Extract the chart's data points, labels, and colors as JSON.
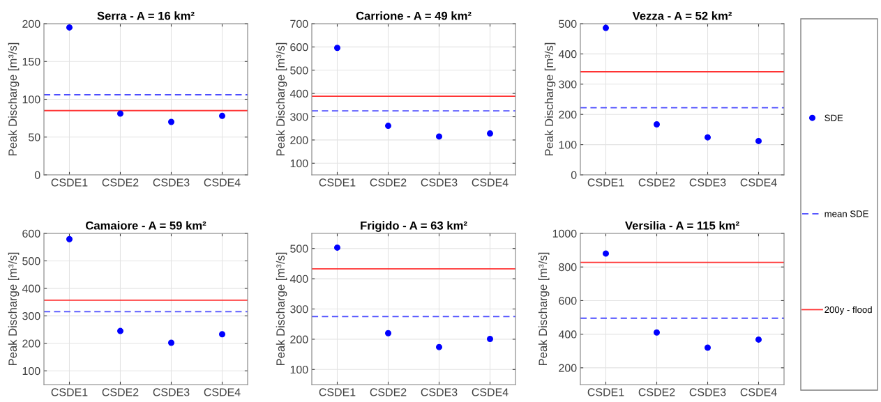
{
  "chart_data": [
    {
      "type": "scatter",
      "title": "Serra - A = 16 km²",
      "ylabel": "Peak Discharge [m³/s]",
      "categories": [
        "CSDE1",
        "CSDE2",
        "CSDE3",
        "CSDE4"
      ],
      "series": [
        {
          "name": "SDE",
          "color": "#0000ff",
          "values": [
            195,
            81,
            70,
            78
          ]
        }
      ],
      "ref_lines": [
        {
          "axis": "y",
          "value": 106,
          "label": "mean SDE",
          "color": "#4d4dff",
          "line_style": "dashed"
        },
        {
          "axis": "y",
          "value": 85,
          "label": "200y - flood",
          "color": "#ff3333",
          "line_style": "solid"
        }
      ],
      "ylim": [
        0,
        200
      ],
      "yticks": [
        0,
        50,
        100,
        150,
        200
      ],
      "grid": true,
      "marker": "circle",
      "legend": "right"
    },
    {
      "type": "scatter",
      "title": "Carrione - A = 49 km²",
      "ylabel": "Peak Discharge [m³/s]",
      "categories": [
        "CSDE1",
        "CSDE2",
        "CSDE3",
        "CSDE4"
      ],
      "series": [
        {
          "name": "SDE",
          "color": "#0000ff",
          "values": [
            596,
            261,
            215,
            228
          ]
        }
      ],
      "ref_lines": [
        {
          "axis": "y",
          "value": 325,
          "color": "#4d4dff",
          "line_style": "dashed"
        },
        {
          "axis": "y",
          "value": 388,
          "color": "#ff3333",
          "line_style": "solid"
        }
      ],
      "ylim": [
        50,
        700
      ],
      "yticks": [
        100,
        200,
        300,
        400,
        500,
        600,
        700
      ],
      "grid": true,
      "marker": "circle",
      "legend": "right"
    },
    {
      "type": "scatter",
      "title": "Vezza - A = 52 km²",
      "ylabel": "Peak Discharge [m³/s]",
      "categories": [
        "CSDE1",
        "CSDE2",
        "CSDE3",
        "CSDE4"
      ],
      "series": [
        {
          "name": "SDE",
          "color": "#0000ff",
          "values": [
            486,
            167,
            124,
            112
          ]
        }
      ],
      "ref_lines": [
        {
          "axis": "y",
          "value": 222,
          "color": "#4d4dff",
          "line_style": "dashed"
        },
        {
          "axis": "y",
          "value": 341,
          "color": "#ff3333",
          "line_style": "solid"
        }
      ],
      "ylim": [
        0,
        500
      ],
      "yticks": [
        0,
        100,
        200,
        300,
        400,
        500
      ],
      "grid": true,
      "marker": "circle",
      "legend": "right"
    },
    {
      "type": "scatter",
      "title": "Camaiore - A = 59 km²",
      "ylabel": "Peak Discharge [m³/s]",
      "categories": [
        "CSDE1",
        "CSDE2",
        "CSDE3",
        "CSDE4"
      ],
      "series": [
        {
          "name": "SDE",
          "color": "#0000ff",
          "values": [
            579,
            245,
            202,
            233
          ]
        }
      ],
      "ref_lines": [
        {
          "axis": "y",
          "value": 315,
          "color": "#4d4dff",
          "line_style": "dashed"
        },
        {
          "axis": "y",
          "value": 357,
          "color": "#ff3333",
          "line_style": "solid"
        }
      ],
      "ylim": [
        50,
        600
      ],
      "yticks": [
        100,
        200,
        300,
        400,
        500,
        600
      ],
      "grid": true,
      "marker": "circle",
      "legend": "right"
    },
    {
      "type": "scatter",
      "title": "Frigido - A = 63 km²",
      "ylabel": "Peak Discharge [m³/s]",
      "categories": [
        "CSDE1",
        "CSDE2",
        "CSDE3",
        "CSDE4"
      ],
      "series": [
        {
          "name": "SDE",
          "color": "#0000ff",
          "values": [
            503,
            220,
            174,
            201
          ]
        }
      ],
      "ref_lines": [
        {
          "axis": "y",
          "value": 275,
          "color": "#4d4dff",
          "line_style": "dashed"
        },
        {
          "axis": "y",
          "value": 433,
          "color": "#ff3333",
          "line_style": "solid"
        }
      ],
      "ylim": [
        50,
        550
      ],
      "yticks": [
        100,
        200,
        300,
        400,
        500
      ],
      "grid": true,
      "marker": "circle",
      "legend": "right"
    },
    {
      "type": "scatter",
      "title": "Versilia - A = 115 km²",
      "ylabel": "Peak Discharge [m³/s]",
      "categories": [
        "CSDE1",
        "CSDE2",
        "CSDE3",
        "CSDE4"
      ],
      "series": [
        {
          "name": "SDE",
          "color": "#0000ff",
          "values": [
            880,
            410,
            320,
            368
          ]
        }
      ],
      "ref_lines": [
        {
          "axis": "y",
          "value": 495,
          "color": "#4d4dff",
          "line_style": "dashed"
        },
        {
          "axis": "y",
          "value": 827,
          "color": "#ff3333",
          "line_style": "solid"
        }
      ],
      "ylim": [
        100,
        1000
      ],
      "yticks": [
        200,
        400,
        600,
        800,
        1000
      ],
      "grid": true,
      "marker": "circle",
      "legend": "right"
    }
  ]
}
